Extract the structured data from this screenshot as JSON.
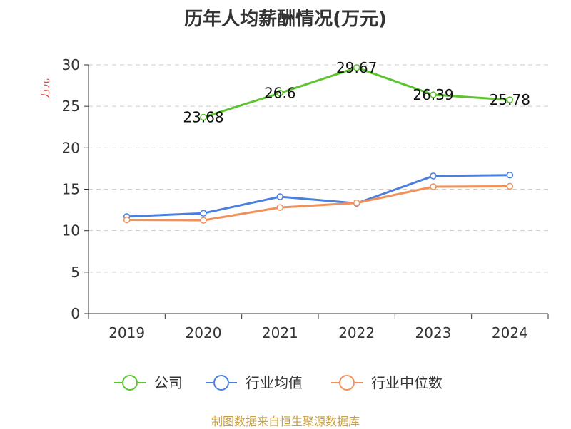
{
  "chart_data": {
    "type": "line",
    "title": "历年人均薪酬情况(万元)",
    "ylabel": "万元",
    "xlabel": "",
    "categories": [
      "2019",
      "2020",
      "2021",
      "2022",
      "2023",
      "2024"
    ],
    "ylim": [
      0,
      30
    ],
    "yticks": [
      0,
      5,
      10,
      15,
      20,
      25,
      30
    ],
    "grid": true,
    "legend_position": "bottom",
    "series": [
      {
        "name": "公司",
        "color": "#5cc42f",
        "values": [
          null,
          23.68,
          26.6,
          29.67,
          26.39,
          25.78
        ],
        "labels": [
          "",
          "23.68",
          "26.6",
          "29.67",
          "26.39",
          "25.78"
        ]
      },
      {
        "name": "行业均值",
        "color": "#4a7fe0",
        "values": [
          11.7,
          12.1,
          14.1,
          13.3,
          16.6,
          16.7
        ]
      },
      {
        "name": "行业中位数",
        "color": "#f0905a",
        "values": [
          11.3,
          11.25,
          12.8,
          13.35,
          15.3,
          15.35
        ]
      }
    ],
    "source": "制图数据来自恒生聚源数据库"
  }
}
